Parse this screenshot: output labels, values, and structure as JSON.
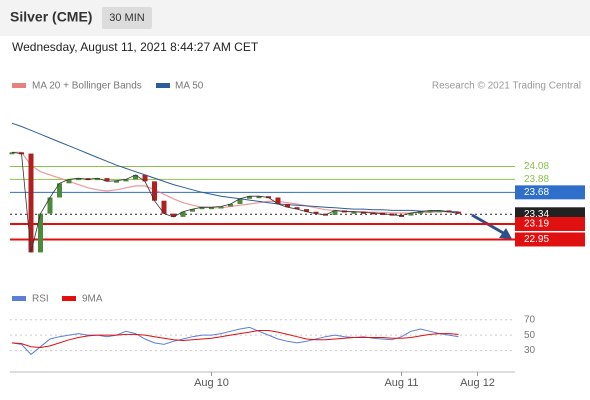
{
  "header": {
    "title": "Silver (CME)",
    "interval": "30 MIN",
    "timestamp": "Wednesday, August 11, 2021 8:44:27 AM CET"
  },
  "chart_data": {
    "type": "line",
    "credit": "Research © 2021 Trading Central",
    "ylim": [
      22.4,
      24.8
    ],
    "price": {
      "color": "#333333",
      "values": [
        24.3,
        24.28,
        22.75,
        23.35,
        23.6,
        23.82,
        23.88,
        23.9,
        23.88,
        23.9,
        23.85,
        23.86,
        23.88,
        23.95,
        23.85,
        23.55,
        23.35,
        23.3,
        23.38,
        23.42,
        23.45,
        23.45,
        23.46,
        23.5,
        23.58,
        23.62,
        23.62,
        23.6,
        23.5,
        23.45,
        23.42,
        23.38,
        23.35,
        23.33,
        23.4,
        23.38,
        23.38,
        23.37,
        23.36,
        23.35,
        23.33,
        23.32,
        23.36,
        23.38,
        23.4,
        23.4,
        23.38,
        23.35
      ]
    },
    "series": [
      {
        "name": "MA 20 + Bollinger Bands",
        "color": "#e88080",
        "values": [
          24.3,
          24.3,
          24.1,
          24.0,
          23.95,
          23.9,
          23.85,
          23.8,
          23.75,
          23.72,
          23.7,
          23.72,
          23.75,
          23.78,
          23.78,
          23.72,
          23.65,
          23.58,
          23.52,
          23.48,
          23.45,
          23.44,
          23.44,
          23.46,
          23.48,
          23.5,
          23.52,
          23.54,
          23.54,
          23.52,
          23.5,
          23.47,
          23.44,
          23.41,
          23.4,
          23.39,
          23.38,
          23.38,
          23.37,
          23.37,
          23.36,
          23.36,
          23.36,
          23.37,
          23.37,
          23.38,
          23.38,
          23.37
        ]
      },
      {
        "name": "MA 50",
        "color": "#2e5c99",
        "values": [
          24.75,
          24.7,
          24.64,
          24.58,
          24.52,
          24.46,
          24.4,
          24.34,
          24.28,
          24.22,
          24.16,
          24.1,
          24.05,
          24.0,
          23.95,
          23.9,
          23.85,
          23.8,
          23.76,
          23.72,
          23.68,
          23.65,
          23.62,
          23.6,
          23.58,
          23.56,
          23.54,
          23.52,
          23.5,
          23.49,
          23.48,
          23.47,
          23.46,
          23.45,
          23.44,
          23.43,
          23.42,
          23.42,
          23.41,
          23.41,
          23.4,
          23.4,
          23.4,
          23.39,
          23.39,
          23.39,
          23.38,
          23.38
        ]
      }
    ],
    "levels": [
      {
        "value": 24.08,
        "color": "#8bc34a",
        "style": "text"
      },
      {
        "value": 23.88,
        "color": "#8bc34a",
        "style": "text"
      },
      {
        "value": 23.68,
        "color": "#2f6fc9",
        "style": "box"
      },
      {
        "value": 23.34,
        "color": "#222222",
        "style": "box"
      },
      {
        "value": 23.19,
        "color": "#e01010",
        "style": "box"
      },
      {
        "value": 22.95,
        "color": "#e01010",
        "style": "box"
      }
    ],
    "xticks": [
      {
        "value": 21,
        "label": "Aug 10"
      },
      {
        "value": 41,
        "label": "Aug 11"
      },
      {
        "value": 49,
        "label": "Aug 12"
      }
    ],
    "rsi": {
      "ylim": [
        10,
        80
      ],
      "yticks": [
        70,
        50,
        30
      ],
      "series": [
        {
          "name": "RSI",
          "color": "#5b7fd6",
          "values": [
            40,
            38,
            25,
            35,
            45,
            48,
            50,
            52,
            50,
            50,
            48,
            50,
            55,
            52,
            45,
            40,
            38,
            42,
            45,
            48,
            50,
            50,
            52,
            55,
            58,
            60,
            55,
            50,
            45,
            42,
            40,
            42,
            45,
            48,
            50,
            48,
            47,
            48,
            46,
            45,
            44,
            48,
            55,
            58,
            55,
            52,
            50,
            48
          ]
        },
        {
          "name": "9MA",
          "color": "#e01010",
          "values": [
            40,
            39,
            35,
            34,
            36,
            40,
            44,
            47,
            49,
            50,
            50,
            50,
            51,
            51,
            50,
            48,
            46,
            44,
            43,
            44,
            45,
            46,
            48,
            50,
            52,
            54,
            56,
            56,
            54,
            51,
            48,
            45,
            44,
            44,
            45,
            46,
            47,
            47,
            47,
            47,
            46,
            46,
            47,
            49,
            51,
            52,
            52,
            51
          ]
        }
      ]
    }
  }
}
